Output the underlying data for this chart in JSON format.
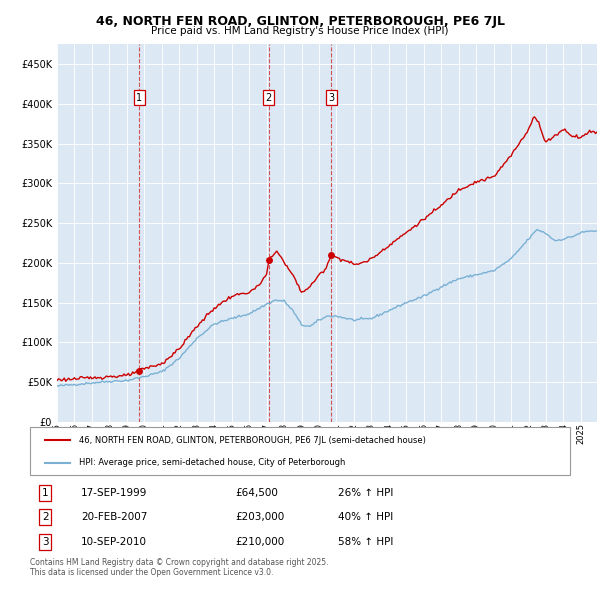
{
  "title_line1": "46, NORTH FEN ROAD, GLINTON, PETERBOROUGH, PE6 7JL",
  "title_line2": "Price paid vs. HM Land Registry's House Price Index (HPI)",
  "background_color": "#ffffff",
  "plot_bg_color": "#dce9f5",
  "hpi_color": "#7ab0d4",
  "price_color": "#cc0000",
  "legend_line1": "46, NORTH FEN ROAD, GLINTON, PETERBOROUGH, PE6 7JL (semi-detached house)",
  "legend_line2": "HPI: Average price, semi-detached house, City of Peterborough",
  "footnote_line1": "Contains HM Land Registry data © Crown copyright and database right 2025.",
  "footnote_line2": "This data is licensed under the Open Government Licence v3.0.",
  "ylim": [
    0,
    475000
  ],
  "yticks": [
    0,
    50000,
    100000,
    150000,
    200000,
    250000,
    300000,
    350000,
    400000,
    450000
  ],
  "xstart_year": 1995,
  "xend_year": 2026,
  "trans_years": [
    1999.708,
    2007.125,
    2010.708
  ],
  "trans_prices": [
    64500,
    203000,
    210000
  ],
  "trans_labels": [
    "1",
    "2",
    "3"
  ],
  "trans_dates": [
    "17-SEP-1999",
    "20-FEB-2007",
    "10-SEP-2010"
  ],
  "trans_price_strs": [
    "£64,500",
    "£203,000",
    "£210,000"
  ],
  "trans_hpi_strs": [
    "26% ↑ HPI",
    "40% ↑ HPI",
    "58% ↑ HPI"
  ],
  "hpi_anchors_x": [
    1995.0,
    1996.0,
    1997.0,
    1998.0,
    1999.0,
    2000.0,
    2001.0,
    2002.0,
    2003.0,
    2004.0,
    2005.0,
    2006.0,
    2007.0,
    2007.5,
    2008.0,
    2008.5,
    2009.0,
    2009.5,
    2010.0,
    2010.5,
    2011.0,
    2012.0,
    2013.0,
    2014.0,
    2015.0,
    2016.0,
    2017.0,
    2018.0,
    2019.0,
    2020.0,
    2021.0,
    2022.0,
    2022.5,
    2023.0,
    2023.5,
    2024.0,
    2024.5,
    2025.0,
    2025.5
  ],
  "hpi_anchors_y": [
    45000,
    47000,
    49000,
    51000,
    52000,
    57000,
    63000,
    80000,
    105000,
    123000,
    130000,
    136000,
    148000,
    153000,
    152000,
    140000,
    122000,
    120000,
    128000,
    133000,
    133000,
    128000,
    130000,
    140000,
    150000,
    158000,
    170000,
    180000,
    185000,
    190000,
    205000,
    230000,
    242000,
    237000,
    228000,
    230000,
    233000,
    238000,
    240000
  ],
  "price_anchors_x": [
    1995.0,
    1996.0,
    1997.0,
    1998.0,
    1999.0,
    1999.708,
    2000.0,
    2001.0,
    2002.0,
    2003.0,
    2004.0,
    2005.0,
    2006.0,
    2006.5,
    2007.0,
    2007.125,
    2007.4,
    2007.6,
    2007.8,
    2008.0,
    2008.5,
    2009.0,
    2009.5,
    2010.0,
    2010.25,
    2010.708,
    2011.0,
    2011.5,
    2012.0,
    2012.5,
    2013.0,
    2014.0,
    2015.0,
    2016.0,
    2017.0,
    2018.0,
    2019.0,
    2020.0,
    2021.0,
    2022.0,
    2022.3,
    2022.6,
    2022.9,
    2023.0,
    2023.5,
    2024.0,
    2024.5,
    2025.0,
    2025.5
  ],
  "price_anchors_y": [
    53000,
    54000,
    55500,
    57000,
    58000,
    64500,
    67000,
    73000,
    92000,
    120000,
    143000,
    158000,
    163000,
    170000,
    185000,
    203000,
    210000,
    215000,
    210000,
    200000,
    185000,
    163000,
    170000,
    185000,
    188000,
    210000,
    207000,
    203000,
    198000,
    200000,
    205000,
    222000,
    238000,
    255000,
    272000,
    292000,
    302000,
    308000,
    335000,
    368000,
    385000,
    375000,
    355000,
    352000,
    360000,
    368000,
    360000,
    358000,
    365000
  ]
}
